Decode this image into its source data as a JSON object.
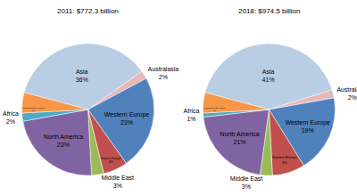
{
  "chart_data": [
    {
      "type": "pie",
      "title": "2011: $772.3 billion",
      "categories": [
        "Asia",
        "Australasia",
        "Western Europe",
        "Eastern Europe",
        "Middle East",
        "North America",
        "Africa",
        "South and Central America"
      ],
      "values": [
        36,
        2,
        23,
        6,
        3,
        23,
        2,
        5
      ],
      "value_labels": [
        "36%",
        "2%",
        "23%",
        "6%",
        "3%",
        "23%",
        "2%",
        "5%"
      ],
      "colors": [
        "#b9cde5",
        "#e6b9b8",
        "#4f81bd",
        "#c0504d",
        "#9bbb59",
        "#8064a2",
        "#4bacc6",
        "#f79646"
      ],
      "data_labels": true
    },
    {
      "type": "pie",
      "title": "2018: $974.5 billion",
      "categories": [
        "Asia",
        "Australasia",
        "Western Europe",
        "Eastern Europe",
        "Middle East",
        "North America",
        "Africa",
        "South and Central America"
      ],
      "values": [
        41,
        2,
        19,
        8,
        3,
        21,
        1,
        5
      ],
      "value_labels": [
        "41%",
        "2%",
        "19%",
        "8%",
        "3%",
        "21%",
        "1%",
        "5%"
      ],
      "colors": [
        "#b9cde5",
        "#e6b9b8",
        "#4f81bd",
        "#c0504d",
        "#9bbb59",
        "#8064a2",
        "#4bacc6",
        "#f79646"
      ],
      "data_labels": true
    }
  ]
}
